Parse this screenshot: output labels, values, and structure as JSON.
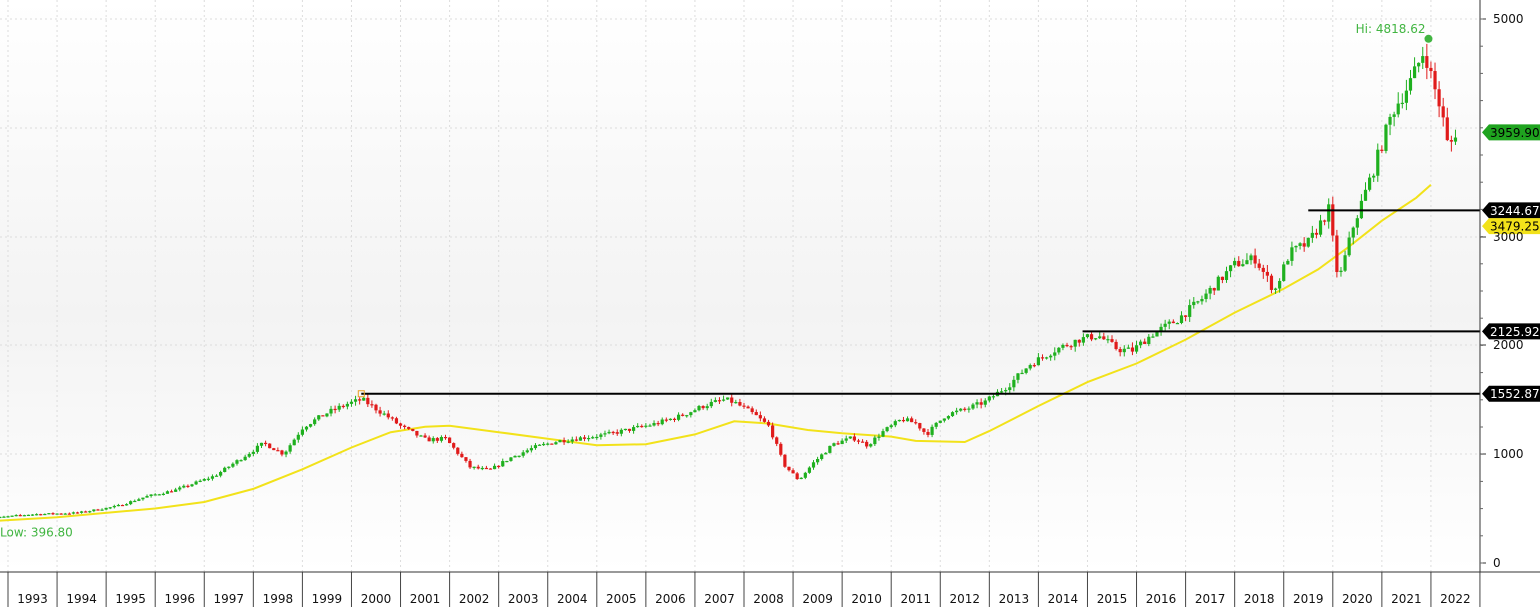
{
  "chart_data": {
    "type": "candlestick",
    "x_axis": {
      "labels": [
        "1993",
        "1994",
        "1995",
        "1996",
        "1997",
        "1998",
        "1999",
        "2000",
        "2001",
        "2002",
        "2003",
        "2004",
        "2005",
        "2006",
        "2007",
        "2008",
        "2009",
        "2010",
        "2011",
        "2012",
        "2013",
        "2014",
        "2015",
        "2016",
        "2017",
        "2018",
        "2019",
        "2020",
        "2021",
        "2022"
      ],
      "range": [
        1993,
        2022.6
      ]
    },
    "y_axis": {
      "tick_labels": [
        "0",
        "1000",
        "2000",
        "3000",
        "5000"
      ],
      "ticks": [
        0,
        1000,
        2000,
        3000,
        5000
      ],
      "range": [
        0,
        5000
      ],
      "side": "right"
    },
    "grid": true,
    "last_price": {
      "label": "3959.90",
      "value": 3959.9,
      "color": "#1fa31f"
    },
    "moving_average": {
      "label": "3479.25",
      "color": "#f2e21a",
      "points": [
        [
          1992.5,
          380
        ],
        [
          1994,
          420
        ],
        [
          1996,
          500
        ],
        [
          1997,
          560
        ],
        [
          1998,
          680
        ],
        [
          1999,
          860
        ],
        [
          2000,
          1060
        ],
        [
          2000.8,
          1200
        ],
        [
          2001.5,
          1250
        ],
        [
          2002,
          1260
        ],
        [
          2003,
          1200
        ],
        [
          2004,
          1140
        ],
        [
          2005,
          1080
        ],
        [
          2006,
          1090
        ],
        [
          2007,
          1180
        ],
        [
          2007.8,
          1300
        ],
        [
          2008.5,
          1280
        ],
        [
          2009.3,
          1220
        ],
        [
          2010,
          1190
        ],
        [
          2011,
          1160
        ],
        [
          2011.5,
          1120
        ],
        [
          2012.5,
          1110
        ],
        [
          2013,
          1210
        ],
        [
          2014,
          1440
        ],
        [
          2015,
          1660
        ],
        [
          2016,
          1830
        ],
        [
          2017,
          2050
        ],
        [
          2018,
          2300
        ],
        [
          2019,
          2520
        ],
        [
          2019.7,
          2700
        ],
        [
          2020.3,
          2900
        ],
        [
          2021,
          3150
        ],
        [
          2021.7,
          3360
        ],
        [
          2022,
          3479
        ]
      ]
    },
    "horizontal_levels": [
      {
        "label": "3244.67",
        "value": 3244.67,
        "from": 2019.5
      },
      {
        "label": "2125.92",
        "value": 2125.92,
        "from": 2014.9
      },
      {
        "label": "1552.87",
        "value": 1552.87,
        "from": 2000.2
      }
    ],
    "annotations": [
      {
        "text": "Hi: 4818.62",
        "x": 2021.6,
        "value": 4818.62,
        "color": "#41b541"
      },
      {
        "text": "Low: 396.80",
        "x": 1993.0,
        "value": 396.8,
        "color": "#41b541"
      }
    ],
    "price_path": [
      [
        1992.5,
        400
      ],
      [
        1993.5,
        445
      ],
      [
        1994.5,
        460
      ],
      [
        1995.3,
        520
      ],
      [
        1995.9,
        610
      ],
      [
        1996.5,
        670
      ],
      [
        1997.3,
        800
      ],
      [
        1997.8,
        950
      ],
      [
        1998.3,
        1100
      ],
      [
        1998.7,
        1000
      ],
      [
        1999.1,
        1250
      ],
      [
        1999.6,
        1380
      ],
      [
        2000.0,
        1460
      ],
      [
        2000.3,
        1500
      ],
      [
        2000.8,
        1350
      ],
      [
        2001.1,
        1250
      ],
      [
        2001.6,
        1130
      ],
      [
        2002.0,
        1140
      ],
      [
        2002.5,
        880
      ],
      [
        2002.9,
        850
      ],
      [
        2003.3,
        960
      ],
      [
        2003.8,
        1060
      ],
      [
        2004.3,
        1120
      ],
      [
        2004.8,
        1150
      ],
      [
        2005.3,
        1180
      ],
      [
        2005.8,
        1230
      ],
      [
        2006.3,
        1280
      ],
      [
        2006.8,
        1350
      ],
      [
        2007.3,
        1450
      ],
      [
        2007.7,
        1500
      ],
      [
        2007.9,
        1470
      ],
      [
        2008.3,
        1360
      ],
      [
        2008.6,
        1250
      ],
      [
        2008.9,
        900
      ],
      [
        2009.2,
        760
      ],
      [
        2009.5,
        920
      ],
      [
        2009.9,
        1090
      ],
      [
        2010.3,
        1150
      ],
      [
        2010.6,
        1080
      ],
      [
        2010.9,
        1200
      ],
      [
        2011.3,
        1320
      ],
      [
        2011.6,
        1280
      ],
      [
        2011.8,
        1180
      ],
      [
        2012.2,
        1360
      ],
      [
        2012.6,
        1410
      ],
      [
        2013.0,
        1480
      ],
      [
        2013.5,
        1640
      ],
      [
        2013.9,
        1820
      ],
      [
        2014.4,
        1950
      ],
      [
        2014.9,
        2050
      ],
      [
        2015.3,
        2090
      ],
      [
        2015.7,
        1960
      ],
      [
        2016.0,
        1950
      ],
      [
        2016.4,
        2100
      ],
      [
        2016.9,
        2230
      ],
      [
        2017.4,
        2420
      ],
      [
        2017.9,
        2660
      ],
      [
        2018.1,
        2750
      ],
      [
        2018.5,
        2800
      ],
      [
        2018.9,
        2500
      ],
      [
        2019.2,
        2850
      ],
      [
        2019.6,
        2950
      ],
      [
        2020.0,
        3250
      ],
      [
        2020.2,
        2580
      ],
      [
        2020.5,
        3100
      ],
      [
        2020.9,
        3600
      ],
      [
        2021.3,
        4150
      ],
      [
        2021.7,
        4450
      ],
      [
        2021.95,
        4720
      ],
      [
        2022.1,
        4450
      ],
      [
        2022.3,
        4150
      ],
      [
        2022.45,
        3780
      ],
      [
        2022.55,
        3960
      ]
    ],
    "candle_colors": {
      "up": "#1fb01f",
      "down": "#e01b1b"
    }
  }
}
